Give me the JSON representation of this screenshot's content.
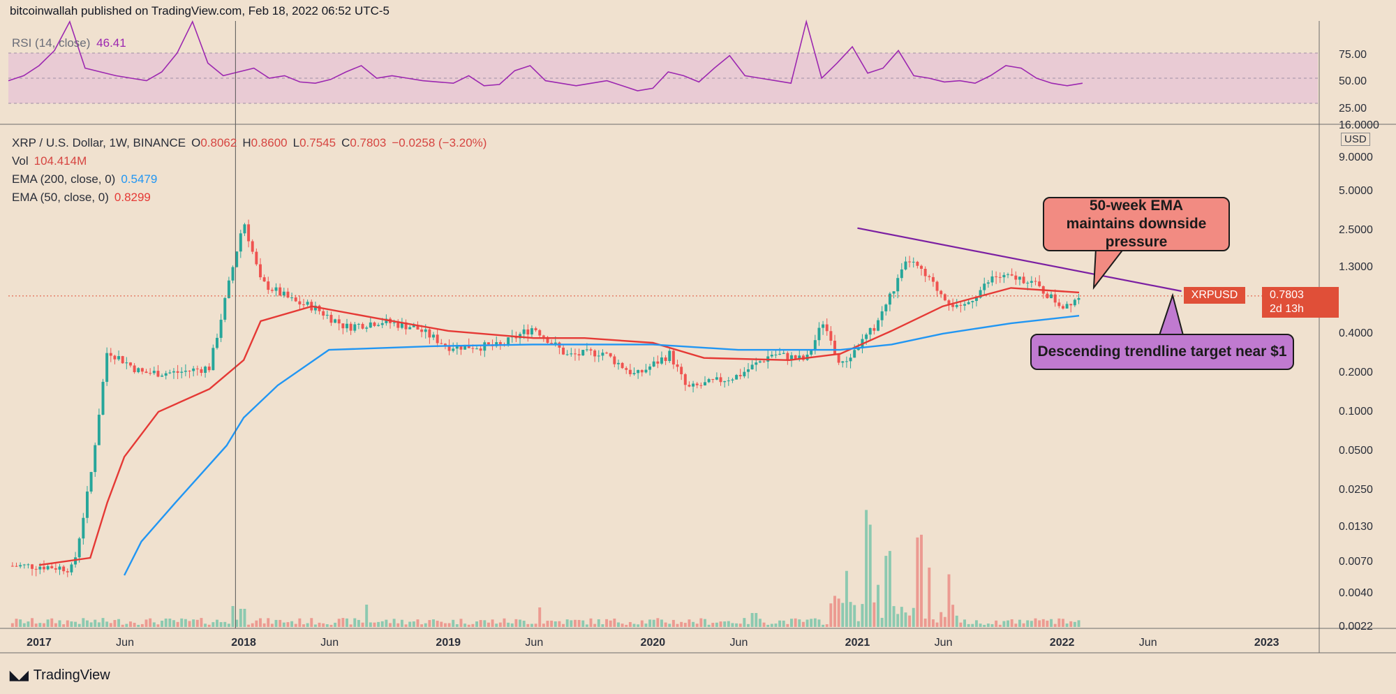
{
  "header": {
    "publisher_line": "bitcoinwallah published on TradingView.com, Feb 18, 2022 06:52 UTC-5"
  },
  "rsi": {
    "label": "RSI (14, close)",
    "value": "46.41",
    "ticks": [
      "75.00",
      "50.00",
      "25.00"
    ]
  },
  "legend": {
    "symbol": "XRP / U.S. Dollar, 1W, BINANCE",
    "open_label": "O",
    "open": "0.8062",
    "high_label": "H",
    "high": "0.8600",
    "low_label": "L",
    "low": "0.7545",
    "close_label": "C",
    "close": "0.7803",
    "change": "−0.0258 (−3.20%)",
    "vol_label": "Vol",
    "vol": "104.414M",
    "ema200_label": "EMA (200, close, 0)",
    "ema200": "0.5479",
    "ema50_label": "EMA (50, close, 0)",
    "ema50": "0.8299"
  },
  "annotations": {
    "red_callout": "50-week EMA maintains downside pressure",
    "purple_callout": "Descending trendline target near $1"
  },
  "price_tag": {
    "symbol": "XRPUSD",
    "price": "0.7803",
    "countdown": "2d 13h"
  },
  "axis": {
    "currency": "USD",
    "y_ticks": [
      "16.0000",
      "9.0000",
      "5.0000",
      "2.5000",
      "1.3000",
      "0.4000",
      "0.2000",
      "0.1000",
      "0.0500",
      "0.0250",
      "0.0130",
      "0.0070",
      "0.0040",
      "0.0022"
    ],
    "x_ticks": [
      {
        "label": "2017",
        "bold": true
      },
      {
        "label": "Jun",
        "bold": false
      },
      {
        "label": "2018",
        "bold": true
      },
      {
        "label": "Jun",
        "bold": false
      },
      {
        "label": "2019",
        "bold": true
      },
      {
        "label": "Jun",
        "bold": false
      },
      {
        "label": "2020",
        "bold": true
      },
      {
        "label": "Jun",
        "bold": false
      },
      {
        "label": "2021",
        "bold": true
      },
      {
        "label": "Jun",
        "bold": false
      },
      {
        "label": "2022",
        "bold": true
      },
      {
        "label": "Jun",
        "bold": false
      },
      {
        "label": "2023",
        "bold": true
      }
    ]
  },
  "footer": {
    "brand": "TradingView"
  },
  "colors": {
    "ema50": "#e53935",
    "ema200": "#2196f3",
    "rsi": "#9c27b0",
    "trendline": "#7b1fa2",
    "up": "#26a69a",
    "down": "#ef5350",
    "background": "#f0e1cf"
  },
  "chart_data": {
    "type": "line",
    "scale": "log",
    "title": "",
    "x_range": [
      "2017-01",
      "2023-01"
    ],
    "ylim": [
      0.0022,
      16
    ],
    "price_close": [
      {
        "date": "2017-01",
        "v": 0.0065
      },
      {
        "date": "2017-03",
        "v": 0.0062
      },
      {
        "date": "2017-04",
        "v": 0.03
      },
      {
        "date": "2017-05",
        "v": 0.3
      },
      {
        "date": "2017-07",
        "v": 0.2
      },
      {
        "date": "2017-09",
        "v": 0.2
      },
      {
        "date": "2017-11",
        "v": 0.22
      },
      {
        "date": "2018-01",
        "v": 3.0
      },
      {
        "date": "2018-02",
        "v": 1.0
      },
      {
        "date": "2018-04",
        "v": 0.7
      },
      {
        "date": "2018-05",
        "v": 0.65
      },
      {
        "date": "2018-07",
        "v": 0.45
      },
      {
        "date": "2018-09",
        "v": 0.5
      },
      {
        "date": "2018-11",
        "v": 0.45
      },
      {
        "date": "2019-01",
        "v": 0.32
      },
      {
        "date": "2019-04",
        "v": 0.32
      },
      {
        "date": "2019-06",
        "v": 0.45
      },
      {
        "date": "2019-08",
        "v": 0.27
      },
      {
        "date": "2019-10",
        "v": 0.29
      },
      {
        "date": "2019-12",
        "v": 0.19
      },
      {
        "date": "2020-02",
        "v": 0.28
      },
      {
        "date": "2020-03",
        "v": 0.15
      },
      {
        "date": "2020-06",
        "v": 0.19
      },
      {
        "date": "2020-08",
        "v": 0.28
      },
      {
        "date": "2020-10",
        "v": 0.25
      },
      {
        "date": "2020-11",
        "v": 0.5
      },
      {
        "date": "2020-12",
        "v": 0.22
      },
      {
        "date": "2021-02",
        "v": 0.45
      },
      {
        "date": "2021-04",
        "v": 1.5
      },
      {
        "date": "2021-06",
        "v": 0.8
      },
      {
        "date": "2021-07",
        "v": 0.6
      },
      {
        "date": "2021-09",
        "v": 1.1
      },
      {
        "date": "2021-11",
        "v": 1.05
      },
      {
        "date": "2022-01",
        "v": 0.65
      },
      {
        "date": "2022-02",
        "v": 0.78
      }
    ],
    "series": [
      {
        "name": "EMA (50, close, 0)",
        "values": [
          {
            "date": "2017-01",
            "v": 0.0066
          },
          {
            "date": "2017-04",
            "v": 0.0075
          },
          {
            "date": "2017-05",
            "v": 0.02
          },
          {
            "date": "2017-06",
            "v": 0.045
          },
          {
            "date": "2017-08",
            "v": 0.1
          },
          {
            "date": "2017-11",
            "v": 0.15
          },
          {
            "date": "2018-01",
            "v": 0.25
          },
          {
            "date": "2018-02",
            "v": 0.5
          },
          {
            "date": "2018-05",
            "v": 0.65
          },
          {
            "date": "2018-09",
            "v": 0.52
          },
          {
            "date": "2019-01",
            "v": 0.42
          },
          {
            "date": "2019-06",
            "v": 0.37
          },
          {
            "date": "2019-09",
            "v": 0.37
          },
          {
            "date": "2020-01",
            "v": 0.34
          },
          {
            "date": "2020-04",
            "v": 0.26
          },
          {
            "date": "2020-09",
            "v": 0.25
          },
          {
            "date": "2020-12",
            "v": 0.28
          },
          {
            "date": "2021-03",
            "v": 0.42
          },
          {
            "date": "2021-06",
            "v": 0.65
          },
          {
            "date": "2021-10",
            "v": 0.9
          },
          {
            "date": "2022-02",
            "v": 0.83
          }
        ]
      },
      {
        "name": "EMA (200, close, 0)",
        "values": [
          {
            "date": "2017-06",
            "v": 0.0055
          },
          {
            "date": "2017-07",
            "v": 0.01
          },
          {
            "date": "2017-09",
            "v": 0.02
          },
          {
            "date": "2017-12",
            "v": 0.055
          },
          {
            "date": "2018-01",
            "v": 0.09
          },
          {
            "date": "2018-03",
            "v": 0.16
          },
          {
            "date": "2018-06",
            "v": 0.3
          },
          {
            "date": "2018-12",
            "v": 0.32
          },
          {
            "date": "2019-06",
            "v": 0.33
          },
          {
            "date": "2020-01",
            "v": 0.33
          },
          {
            "date": "2020-06",
            "v": 0.3
          },
          {
            "date": "2020-12",
            "v": 0.3
          },
          {
            "date": "2021-03",
            "v": 0.33
          },
          {
            "date": "2021-06",
            "v": 0.4
          },
          {
            "date": "2021-10",
            "v": 0.48
          },
          {
            "date": "2022-02",
            "v": 0.55
          }
        ]
      }
    ],
    "trendline": [
      {
        "date": "2021-01",
        "v": 2.6
      },
      {
        "date": "2022-08",
        "v": 0.85
      }
    ],
    "current_price": 0.7803,
    "rsi_values": [
      48,
      52,
      60,
      72,
      95,
      58,
      55,
      52,
      50,
      48,
      55,
      70,
      95,
      62,
      52,
      55,
      58,
      50,
      52,
      47,
      46,
      49,
      55,
      60,
      50,
      52,
      50,
      48,
      47,
      46,
      52,
      44,
      45,
      56,
      60,
      48,
      46,
      44,
      46,
      48,
      44,
      40,
      42,
      55,
      52,
      47,
      58,
      68,
      52,
      50,
      48,
      46,
      95,
      50,
      62,
      75,
      54,
      58,
      72,
      52,
      50,
      47,
      48,
      46,
      52,
      60,
      58,
      50,
      46,
      44,
      46
    ]
  }
}
